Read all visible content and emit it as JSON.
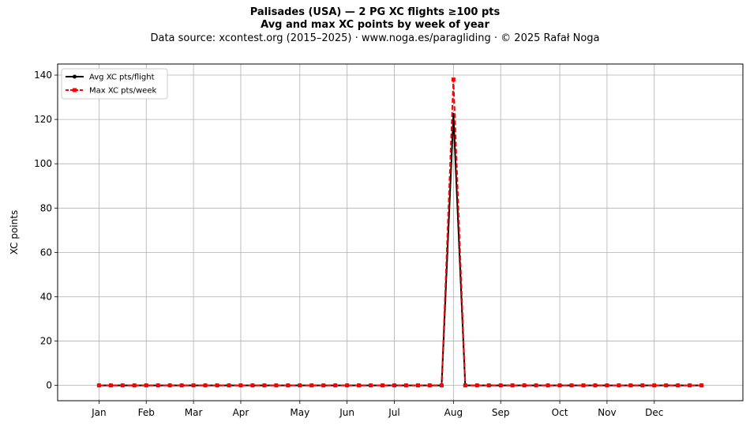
{
  "chart_data": {
    "type": "line",
    "title_line1": "Palisades (USA)  —  2 PG XC flights ≥100 pts",
    "title_line2": "Avg and max XC points by week of year",
    "subtitle": "Data source: xcontest.org (2015–2025)  ·  www.noga.es/paragliding  ·  © 2025 Rafał Noga",
    "ylabel": "XC points",
    "xlabel": "",
    "x_domain": [
      -2.5,
      55.5
    ],
    "ylim": [
      -6.9,
      145
    ],
    "y_ticks": [
      0,
      20,
      40,
      60,
      80,
      100,
      120,
      140
    ],
    "month_ticks": [
      {
        "label": "Jan",
        "week": 1
      },
      {
        "label": "Feb",
        "week": 5
      },
      {
        "label": "Mar",
        "week": 9
      },
      {
        "label": "Apr",
        "week": 13
      },
      {
        "label": "May",
        "week": 18
      },
      {
        "label": "Jun",
        "week": 22
      },
      {
        "label": "Jul",
        "week": 26
      },
      {
        "label": "Aug",
        "week": 31
      },
      {
        "label": "Sep",
        "week": 35
      },
      {
        "label": "Oct",
        "week": 40
      },
      {
        "label": "Nov",
        "week": 44
      },
      {
        "label": "Dec",
        "week": 48
      }
    ],
    "grid": true,
    "legend_position": "top-left",
    "x": [
      1,
      2,
      3,
      4,
      5,
      6,
      7,
      8,
      9,
      10,
      11,
      12,
      13,
      14,
      15,
      16,
      17,
      18,
      19,
      20,
      21,
      22,
      23,
      24,
      25,
      26,
      27,
      28,
      29,
      30,
      31,
      32,
      33,
      34,
      35,
      36,
      37,
      38,
      39,
      40,
      41,
      42,
      43,
      44,
      45,
      46,
      47,
      48,
      49,
      50,
      51,
      52
    ],
    "series": [
      {
        "name": "Avg XC pts/flight",
        "color": "#000000",
        "style": "solid-dot",
        "values": [
          0,
          0,
          0,
          0,
          0,
          0,
          0,
          0,
          0,
          0,
          0,
          0,
          0,
          0,
          0,
          0,
          0,
          0,
          0,
          0,
          0,
          0,
          0,
          0,
          0,
          0,
          0,
          0,
          0,
          0,
          122,
          0,
          0,
          0,
          0,
          0,
          0,
          0,
          0,
          0,
          0,
          0,
          0,
          0,
          0,
          0,
          0,
          0,
          0,
          0,
          0,
          0
        ]
      },
      {
        "name": "Max XC pts/week",
        "color": "#ff0000",
        "style": "dashed-square",
        "values": [
          0,
          0,
          0,
          0,
          0,
          0,
          0,
          0,
          0,
          0,
          0,
          0,
          0,
          0,
          0,
          0,
          0,
          0,
          0,
          0,
          0,
          0,
          0,
          0,
          0,
          0,
          0,
          0,
          0,
          0,
          138,
          0,
          0,
          0,
          0,
          0,
          0,
          0,
          0,
          0,
          0,
          0,
          0,
          0,
          0,
          0,
          0,
          0,
          0,
          0,
          0,
          0
        ]
      }
    ]
  }
}
